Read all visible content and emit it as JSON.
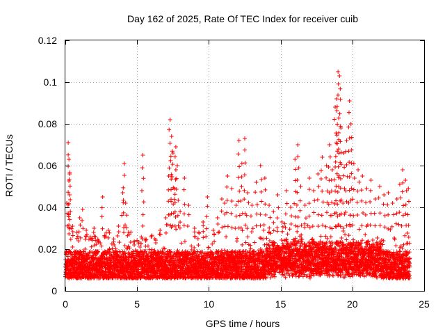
{
  "chart_data": {
    "type": "scatter",
    "title": "Day 162 of 2025, Rate Of TEC Index for receiver cuib",
    "xlabel": "GPS time / hours",
    "ylabel": "ROTI / TECUs",
    "xlim": [
      0,
      25
    ],
    "ylim": [
      0,
      0.12
    ],
    "xticks": [
      0,
      5,
      10,
      15,
      20,
      25
    ],
    "xtick_labels": [
      "0",
      "5",
      "10",
      "15",
      "20",
      "25"
    ],
    "yticks": [
      0,
      0.02,
      0.04,
      0.06,
      0.08,
      0.1,
      0.12
    ],
    "ytick_labels": [
      "0",
      "0.02",
      "0.04",
      "0.06",
      "0.08",
      "0.1",
      "0.12"
    ],
    "grid": true,
    "marker": "+",
    "color": "#ff0000",
    "series": [
      {
        "name": "ROTI",
        "x": [
          0.1,
          0.2,
          0.25,
          0.3,
          0.35,
          0.5,
          0.8,
          1.0,
          1.2,
          1.5,
          1.8,
          2.0,
          2.3,
          2.6,
          2.8,
          3.0,
          3.4,
          3.7,
          4.0,
          4.1,
          4.2,
          4.4,
          4.8,
          5.2,
          5.4,
          5.6,
          6.0,
          6.3,
          6.6,
          7.0,
          7.2,
          7.3,
          7.4,
          7.5,
          7.6,
          7.7,
          7.8,
          8.0,
          8.3,
          8.6,
          9.0,
          9.3,
          9.6,
          9.9,
          10.3,
          10.6,
          10.9,
          11.1,
          11.3,
          11.6,
          11.9,
          12.1,
          12.3,
          12.5,
          12.7,
          13.0,
          13.3,
          13.6,
          13.9,
          14.2,
          14.5,
          14.8,
          15.1,
          15.4,
          15.7,
          16.0,
          16.2,
          16.4,
          16.7,
          17.0,
          17.3,
          17.6,
          17.9,
          18.2,
          18.4,
          18.6,
          18.8,
          18.9,
          19.0,
          19.1,
          19.2,
          19.4,
          19.6,
          19.8,
          19.9,
          20.1,
          20.4,
          20.7,
          21.0,
          21.3,
          21.6,
          21.9,
          22.2,
          22.5,
          22.8,
          23.1,
          23.3,
          23.5,
          23.7,
          23.9
        ],
        "y": [
          0.042,
          0.071,
          0.063,
          0.056,
          0.038,
          0.031,
          0.028,
          0.035,
          0.039,
          0.027,
          0.025,
          0.03,
          0.024,
          0.045,
          0.026,
          0.029,
          0.022,
          0.031,
          0.047,
          0.061,
          0.042,
          0.028,
          0.022,
          0.021,
          0.065,
          0.024,
          0.026,
          0.023,
          0.029,
          0.035,
          0.055,
          0.082,
          0.074,
          0.066,
          0.049,
          0.069,
          0.06,
          0.038,
          0.054,
          0.041,
          0.03,
          0.028,
          0.033,
          0.045,
          0.029,
          0.035,
          0.044,
          0.042,
          0.055,
          0.049,
          0.041,
          0.072,
          0.061,
          0.073,
          0.047,
          0.041,
          0.052,
          0.06,
          0.054,
          0.041,
          0.038,
          0.046,
          0.033,
          0.048,
          0.04,
          0.063,
          0.07,
          0.05,
          0.041,
          0.054,
          0.048,
          0.056,
          0.064,
          0.06,
          0.07,
          0.058,
          0.088,
          0.092,
          0.105,
          0.103,
          0.078,
          0.066,
          0.072,
          0.091,
          0.08,
          0.061,
          0.058,
          0.055,
          0.049,
          0.053,
          0.044,
          0.05,
          0.046,
          0.047,
          0.042,
          0.044,
          0.051,
          0.058,
          0.053,
          0.049
        ]
      }
    ],
    "dense_band": {
      "description_values": "bulk of samples",
      "x_range": [
        0,
        24
      ],
      "y_range": [
        0.002,
        0.03
      ]
    }
  }
}
